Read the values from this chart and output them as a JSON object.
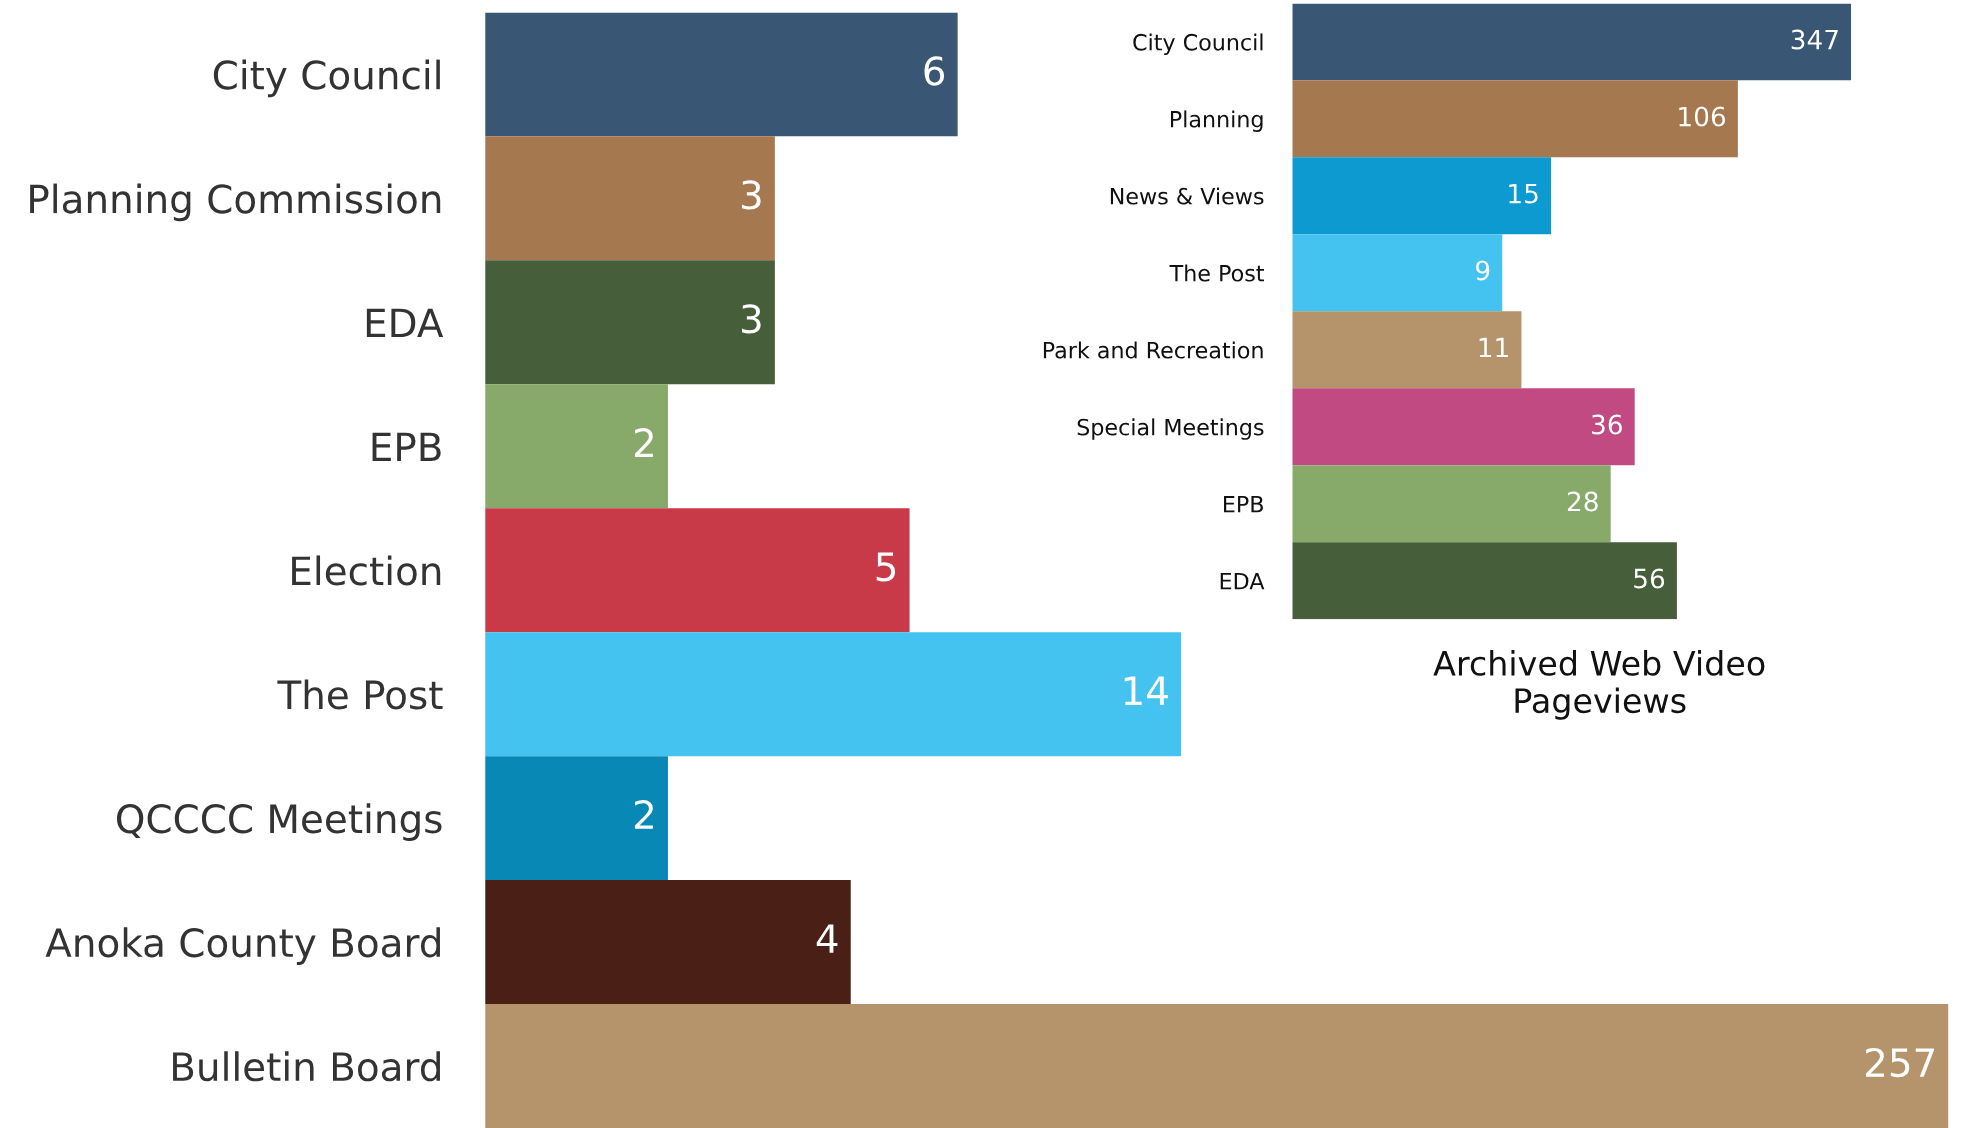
{
  "chart_data": [
    {
      "type": "bar",
      "orientation": "horizontal",
      "log": "x",
      "xlim": [
        1,
        257
      ],
      "tick_labels": "y",
      "data_labels": true,
      "grid": false,
      "legend": false,
      "categories": [
        "City Council",
        "Planning Commission",
        "EDA",
        "EPB",
        "Election",
        "The Post",
        "QCCCC Meetings",
        "Anoka County Board",
        "Bulletin Board"
      ],
      "values": [
        6,
        3,
        3,
        2,
        5,
        14,
        2,
        4,
        257
      ],
      "colors": [
        "#3a5675",
        "#a67850",
        "#475e3a",
        "#87aa6a",
        "#c93a48",
        "#45c3f0",
        "#0888b5",
        "#4a1f16",
        "#b5946c"
      ]
    },
    {
      "type": "bar",
      "orientation": "horizontal",
      "log": "x",
      "xlim": [
        1,
        347
      ],
      "tick_labels": "y",
      "data_labels": true,
      "grid": false,
      "legend": false,
      "title": "Archived Web Video\nPageviews",
      "categories": [
        "City Council",
        "Planning",
        "News & Views",
        "The Post",
        "Park and Recreation",
        "Special Meetings",
        "EPB",
        "EDA"
      ],
      "values": [
        347,
        106,
        15,
        9,
        11,
        36,
        28,
        56
      ],
      "colors": [
        "#3a5675",
        "#a67850",
        "#0d9ad0",
        "#45c3f0",
        "#b5946c",
        "#c24a82",
        "#87aa6a",
        "#475e3a"
      ]
    }
  ]
}
